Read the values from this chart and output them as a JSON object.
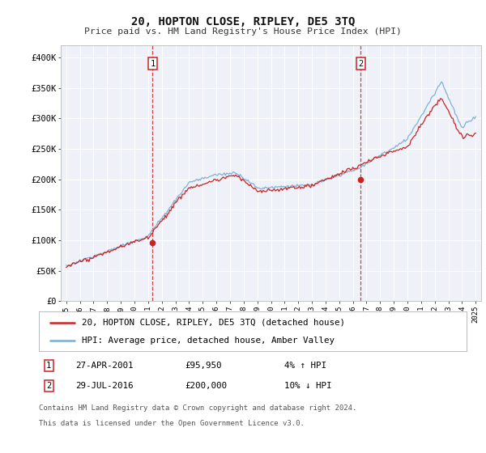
{
  "title": "20, HOPTON CLOSE, RIPLEY, DE5 3TQ",
  "subtitle": "Price paid vs. HM Land Registry's House Price Index (HPI)",
  "plot_bg_color": "#eef2f8",
  "ylim": [
    0,
    420000
  ],
  "yticks": [
    0,
    50000,
    100000,
    150000,
    200000,
    250000,
    300000,
    350000,
    400000
  ],
  "ytick_labels": [
    "£0",
    "£50K",
    "£100K",
    "£150K",
    "£200K",
    "£250K",
    "£300K",
    "£350K",
    "£400K"
  ],
  "sale1_year": 2001.33,
  "sale1_price": 95950,
  "sale2_year": 2016.58,
  "sale2_price": 200000,
  "sale1_date_str": "27-APR-2001",
  "sale1_price_str": "£95,950",
  "sale1_pct": "4% ↑ HPI",
  "sale2_date_str": "29-JUL-2016",
  "sale2_price_str": "£200,000",
  "sale2_pct": "10% ↓ HPI",
  "hpi_color": "#7aadd4",
  "price_color": "#cc2222",
  "marker_color": "#cc2222",
  "legend_label1": "20, HOPTON CLOSE, RIPLEY, DE5 3TQ (detached house)",
  "legend_label2": "HPI: Average price, detached house, Amber Valley",
  "footer1": "Contains HM Land Registry data © Crown copyright and database right 2024.",
  "footer2": "This data is licensed under the Open Government Licence v3.0."
}
